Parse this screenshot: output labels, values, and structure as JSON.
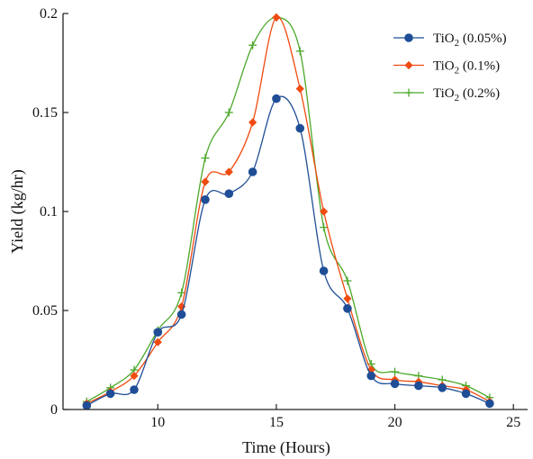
{
  "chart_data": {
    "type": "line",
    "title": "",
    "xlabel": "Time (Hours)",
    "ylabel": "Yield (kg/hr)",
    "xlim": [
      6,
      25.6
    ],
    "ylim": [
      0,
      0.2
    ],
    "xticks": [
      10,
      15,
      20,
      25
    ],
    "yticks": [
      0,
      0.05,
      0.1,
      0.15,
      0.2
    ],
    "xtick_labels": [
      "10",
      "15",
      "20",
      "25"
    ],
    "ytick_labels": [
      "0",
      "0.05",
      "0.1",
      "0.15",
      "0.2"
    ],
    "grid": false,
    "legend_position": "top-right",
    "x": [
      7,
      8,
      9,
      10,
      11,
      12,
      13,
      14,
      15,
      16,
      17,
      18,
      19,
      20,
      21,
      22,
      23,
      24
    ],
    "series": [
      {
        "name_main": "TiO",
        "name_sub": "2",
        "name_rest": " (0.05%)",
        "color": "#1f4e96",
        "marker": "circle",
        "values": [
          0.002,
          0.008,
          0.01,
          0.039,
          0.048,
          0.106,
          0.109,
          0.12,
          0.157,
          0.142,
          0.07,
          0.051,
          0.017,
          0.013,
          0.012,
          0.011,
          0.008,
          0.003
        ]
      },
      {
        "name_main": "TiO",
        "name_sub": "2",
        "name_rest": " (0.1%)",
        "color": "#f04a10",
        "marker": "diamond",
        "values": [
          0.003,
          0.009,
          0.017,
          0.034,
          0.052,
          0.115,
          0.12,
          0.145,
          0.198,
          0.162,
          0.1,
          0.056,
          0.02,
          0.015,
          0.014,
          0.012,
          0.01,
          0.004
        ]
      },
      {
        "name_main": "TiO",
        "name_sub": "2",
        "name_rest": " (0.2%)",
        "color": "#4ca82a",
        "marker": "plus",
        "values": [
          0.004,
          0.011,
          0.02,
          0.04,
          0.059,
          0.127,
          0.15,
          0.184,
          0.198,
          0.181,
          0.092,
          0.065,
          0.023,
          0.019,
          0.017,
          0.015,
          0.012,
          0.006
        ]
      }
    ]
  }
}
